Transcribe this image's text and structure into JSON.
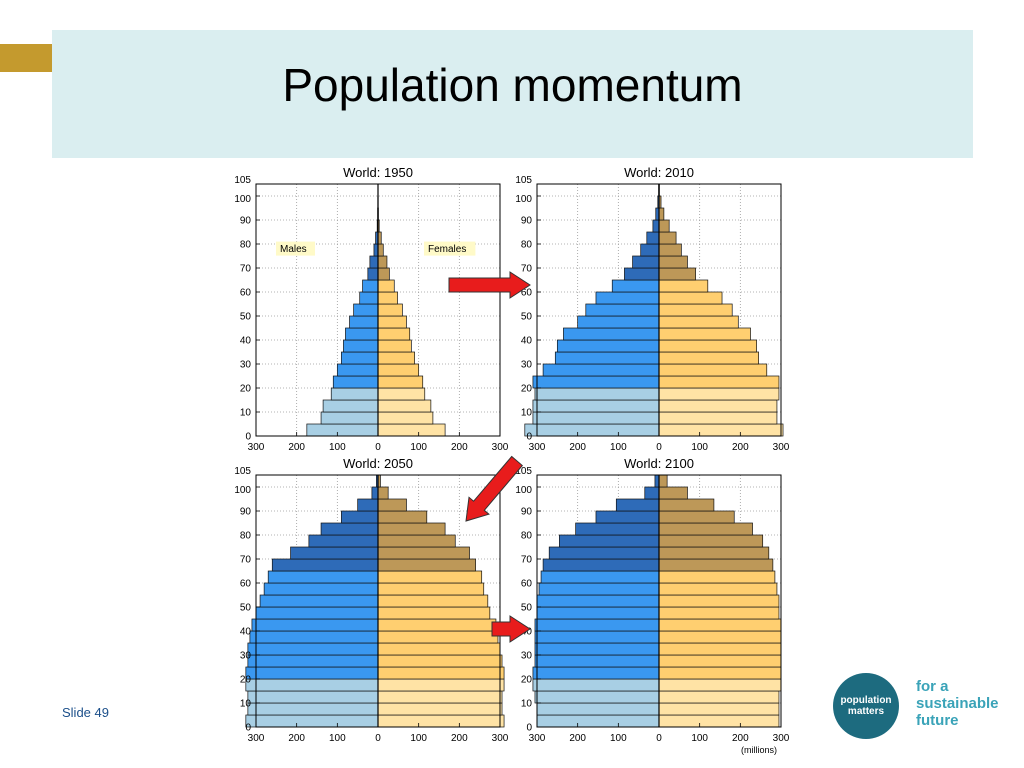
{
  "slide": {
    "title": "Population momentum",
    "slide_number": "Slide 49"
  },
  "logo": {
    "circle_line1": "population",
    "circle_line2": "matters",
    "tagline": [
      "for a",
      "sustainable",
      "future"
    ]
  },
  "colors": {
    "male_young": "#a8cfe4",
    "male_working": "#3a98f0",
    "male_old": "#2e6bb8",
    "female_young": "#ffe3a5",
    "female_working": "#ffcf70",
    "female_old": "#bd9858",
    "arrow": "#e81c1c",
    "title_band": "#daeef0",
    "gold_tab": "#c49a2e"
  },
  "chart_data": [
    {
      "type": "bar",
      "title": "World: 1950",
      "age_groups": [
        0,
        5,
        10,
        15,
        20,
        25,
        30,
        35,
        40,
        45,
        50,
        55,
        60,
        65,
        70,
        75,
        80,
        85,
        90,
        95,
        100
      ],
      "males": [
        175,
        140,
        135,
        115,
        110,
        100,
        90,
        85,
        80,
        70,
        60,
        45,
        38,
        25,
        20,
        10,
        6,
        2,
        1,
        0.5,
        0.2
      ],
      "females": [
        165,
        135,
        130,
        115,
        110,
        100,
        90,
        82,
        78,
        70,
        60,
        48,
        40,
        28,
        22,
        13,
        8,
        3,
        1,
        0.5,
        0.2
      ],
      "legend": [
        "Males",
        "Females"
      ],
      "ylim": [
        0,
        105
      ],
      "xlim": [
        -300,
        300
      ],
      "y_ticks": [
        0,
        10,
        20,
        30,
        40,
        50,
        60,
        70,
        80,
        90,
        100,
        105
      ],
      "x_ticks": [
        -300,
        -200,
        -100,
        0,
        100,
        200,
        300
      ],
      "x_tick_labels": [
        "300",
        "200",
        "100",
        "0",
        "100",
        "200",
        "300"
      ],
      "grid": true
    },
    {
      "type": "bar",
      "title": "World: 2010",
      "age_groups": [
        0,
        5,
        10,
        15,
        20,
        25,
        30,
        35,
        40,
        45,
        50,
        55,
        60,
        65,
        70,
        75,
        80,
        85,
        90,
        95,
        100
      ],
      "males": [
        330,
        310,
        310,
        305,
        310,
        285,
        255,
        250,
        235,
        200,
        180,
        155,
        115,
        85,
        65,
        45,
        30,
        15,
        8,
        3,
        1
      ],
      "females": [
        305,
        290,
        290,
        295,
        295,
        265,
        245,
        240,
        225,
        195,
        180,
        155,
        120,
        90,
        70,
        55,
        42,
        25,
        12,
        5,
        1
      ],
      "ylim": [
        0,
        105
      ],
      "xlim": [
        -300,
        300
      ],
      "y_ticks": [
        0,
        10,
        20,
        30,
        40,
        50,
        60,
        70,
        80,
        90,
        100,
        105
      ],
      "x_ticks": [
        -300,
        -200,
        -100,
        0,
        100,
        200,
        300
      ],
      "x_tick_labels": [
        "300",
        "200",
        "100",
        "0",
        "100",
        "200",
        "300"
      ],
      "grid": true
    },
    {
      "type": "bar",
      "title": "World: 2050",
      "age_groups": [
        0,
        5,
        10,
        15,
        20,
        25,
        30,
        35,
        40,
        45,
        50,
        55,
        60,
        65,
        70,
        75,
        80,
        85,
        90,
        95,
        100
      ],
      "males": [
        325,
        320,
        320,
        325,
        325,
        320,
        320,
        315,
        310,
        300,
        290,
        280,
        270,
        260,
        215,
        170,
        140,
        90,
        50,
        15,
        4
      ],
      "females": [
        310,
        305,
        305,
        310,
        310,
        305,
        300,
        295,
        290,
        275,
        270,
        260,
        255,
        240,
        225,
        190,
        165,
        120,
        70,
        25,
        6
      ],
      "ylim": [
        0,
        105
      ],
      "xlim": [
        -300,
        300
      ],
      "y_ticks": [
        0,
        10,
        20,
        30,
        40,
        50,
        60,
        70,
        80,
        90,
        100,
        105
      ],
      "x_ticks": [
        -300,
        -200,
        -100,
        0,
        100,
        200,
        300
      ],
      "x_tick_labels": [
        "300",
        "200",
        "100",
        "0",
        "100",
        "200",
        "300"
      ],
      "grid": true
    },
    {
      "type": "bar",
      "title": "World: 2100",
      "age_groups": [
        0,
        5,
        10,
        15,
        20,
        25,
        30,
        35,
        40,
        45,
        50,
        55,
        60,
        65,
        70,
        75,
        80,
        85,
        90,
        95,
        100
      ],
      "males": [
        300,
        300,
        305,
        310,
        310,
        305,
        305,
        305,
        305,
        300,
        300,
        295,
        290,
        285,
        270,
        245,
        205,
        155,
        105,
        35,
        10
      ],
      "females": [
        295,
        295,
        295,
        300,
        300,
        300,
        300,
        300,
        300,
        295,
        295,
        290,
        285,
        280,
        270,
        255,
        230,
        185,
        135,
        70,
        20
      ],
      "xlabel": "(millions)",
      "ylim": [
        0,
        105
      ],
      "xlim": [
        -300,
        300
      ],
      "y_ticks": [
        0,
        10,
        20,
        30,
        40,
        50,
        60,
        70,
        80,
        90,
        100,
        105
      ],
      "x_ticks": [
        -300,
        -200,
        -100,
        0,
        100,
        200,
        300
      ],
      "x_tick_labels": [
        "300",
        "200",
        "100",
        "0",
        "100",
        "200",
        "300"
      ],
      "grid": true
    }
  ]
}
